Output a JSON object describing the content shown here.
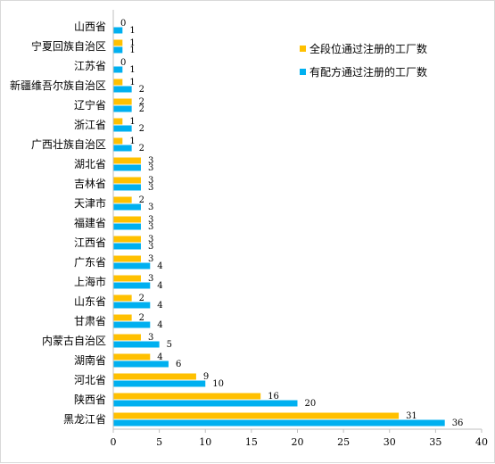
{
  "colors": {
    "series_a": "#FFC000",
    "series_b": "#00B0F0",
    "axis": "#bfbfbf"
  },
  "chart_data": {
    "type": "bar",
    "orientation": "horizontal",
    "categories": [
      "山西省",
      "宁夏回族自治区",
      "江苏省",
      "新疆维吾尔族自治区",
      "辽宁省",
      "浙江省",
      "广西壮族自治区",
      "湖北省",
      "吉林省",
      "天津市",
      "福建省",
      "江西省",
      "广东省",
      "上海市",
      "山东省",
      "甘肃省",
      "内蒙古自治区",
      "湖南省",
      "河北省",
      "陕西省",
      "黑龙江省"
    ],
    "series": [
      {
        "name": "全段位通过注册的工厂数",
        "color": "#FFC000",
        "values": [
          0,
          1,
          0,
          1,
          2,
          1,
          1,
          3,
          3,
          2,
          3,
          3,
          3,
          3,
          2,
          2,
          3,
          4,
          9,
          16,
          31
        ]
      },
      {
        "name": "有配方通过注册的工厂数",
        "color": "#00B0F0",
        "values": [
          1,
          1,
          1,
          2,
          2,
          2,
          2,
          3,
          3,
          3,
          3,
          3,
          4,
          4,
          4,
          4,
          5,
          6,
          10,
          20,
          36
        ]
      }
    ],
    "xlim": [
      0,
      40
    ],
    "xticks": [
      0,
      5,
      10,
      15,
      20,
      25,
      30,
      35,
      40
    ],
    "legend_position": "right",
    "grid": false
  }
}
